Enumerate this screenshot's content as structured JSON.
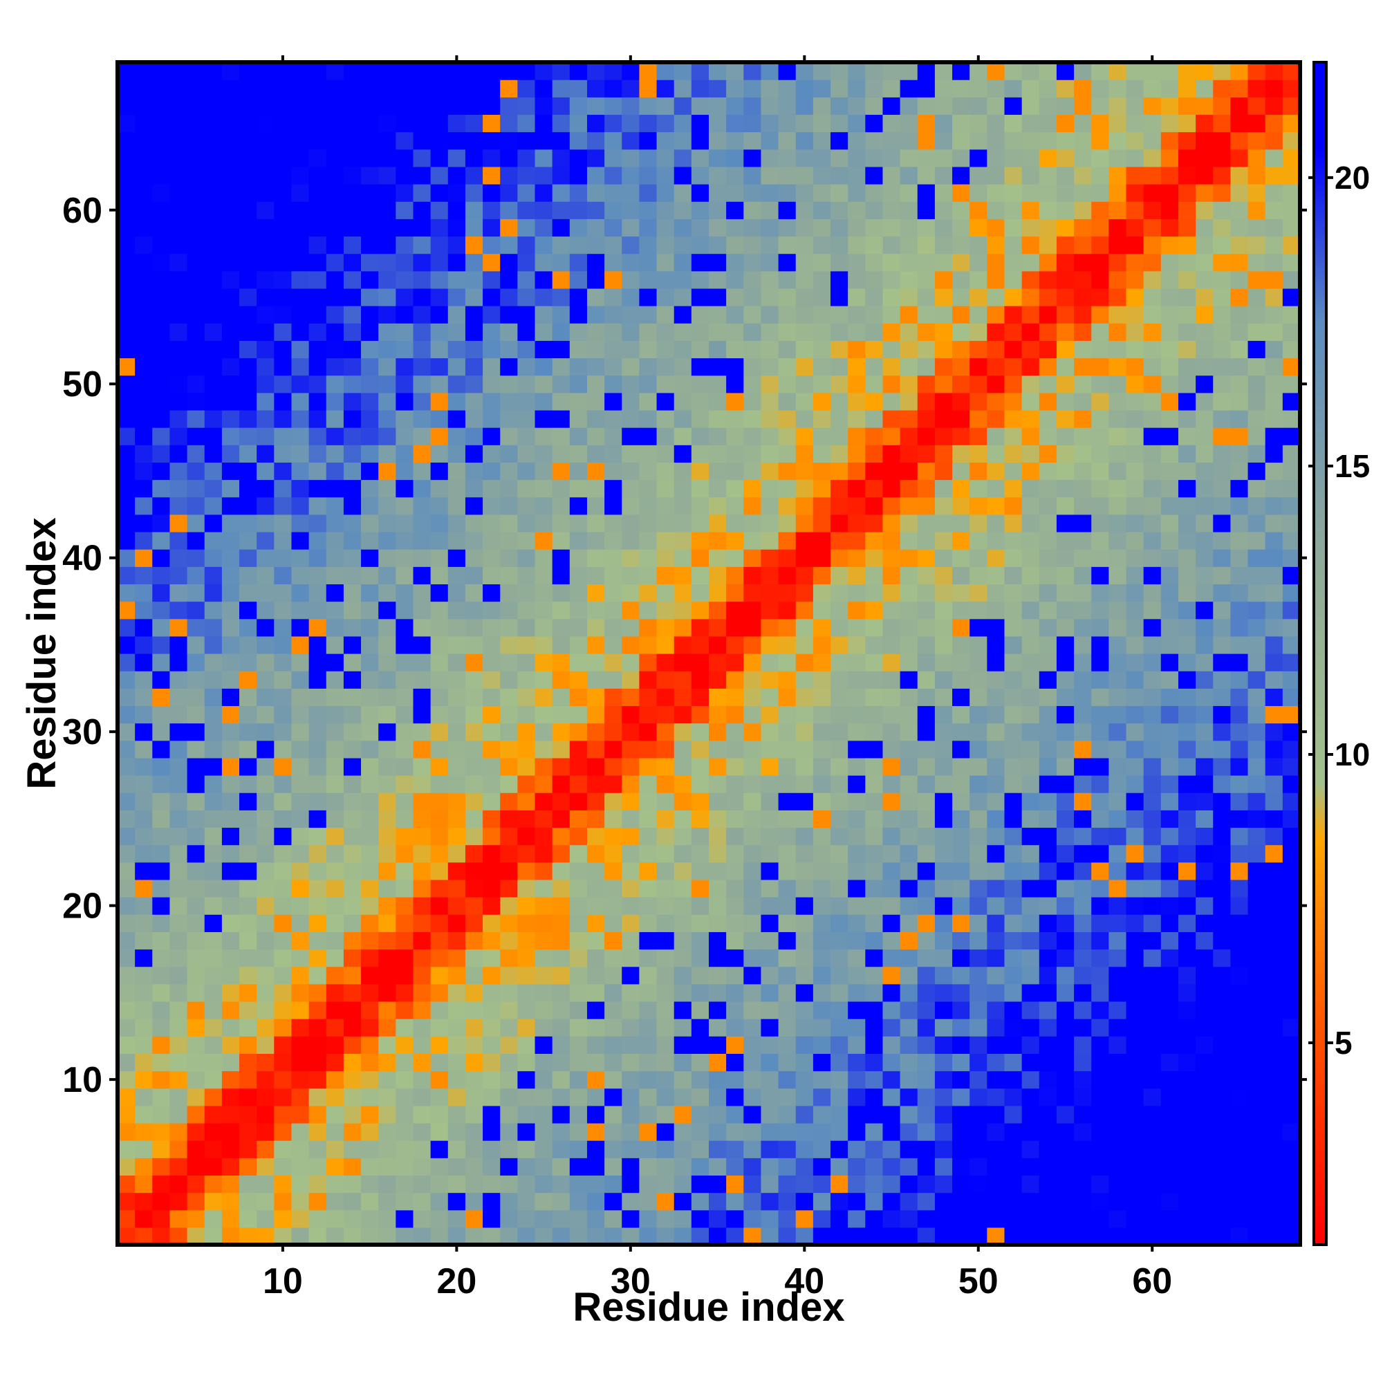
{
  "chart_data": {
    "type": "heatmap",
    "title": "",
    "xlabel": "Residue index",
    "ylabel": "Residue index",
    "n": 68,
    "xlim": [
      0.5,
      68.5
    ],
    "ylim": [
      0.5,
      68.5
    ],
    "x_ticks": [
      10,
      20,
      30,
      40,
      50,
      60
    ],
    "y_ticks": [
      10,
      20,
      30,
      40,
      50,
      60
    ],
    "colorbar": {
      "ticks": [
        5,
        10,
        15,
        20
      ],
      "range": [
        1.5,
        22
      ],
      "stops": [
        {
          "value": 1.5,
          "color": "#ff0000"
        },
        {
          "value": 5.5,
          "color": "#ff5a00"
        },
        {
          "value": 8.5,
          "color": "#ffa500"
        },
        {
          "value": 9.5,
          "color": "#a4c08a"
        },
        {
          "value": 13.5,
          "color": "#8fa99a"
        },
        {
          "value": 17.5,
          "color": "#5b8cc0"
        },
        {
          "value": 20.5,
          "color": "#0000ff"
        }
      ]
    },
    "value_model": "symmetric residue distance map; value increases with sequence separation |i-j|, saturating at the top of the color scale"
  }
}
